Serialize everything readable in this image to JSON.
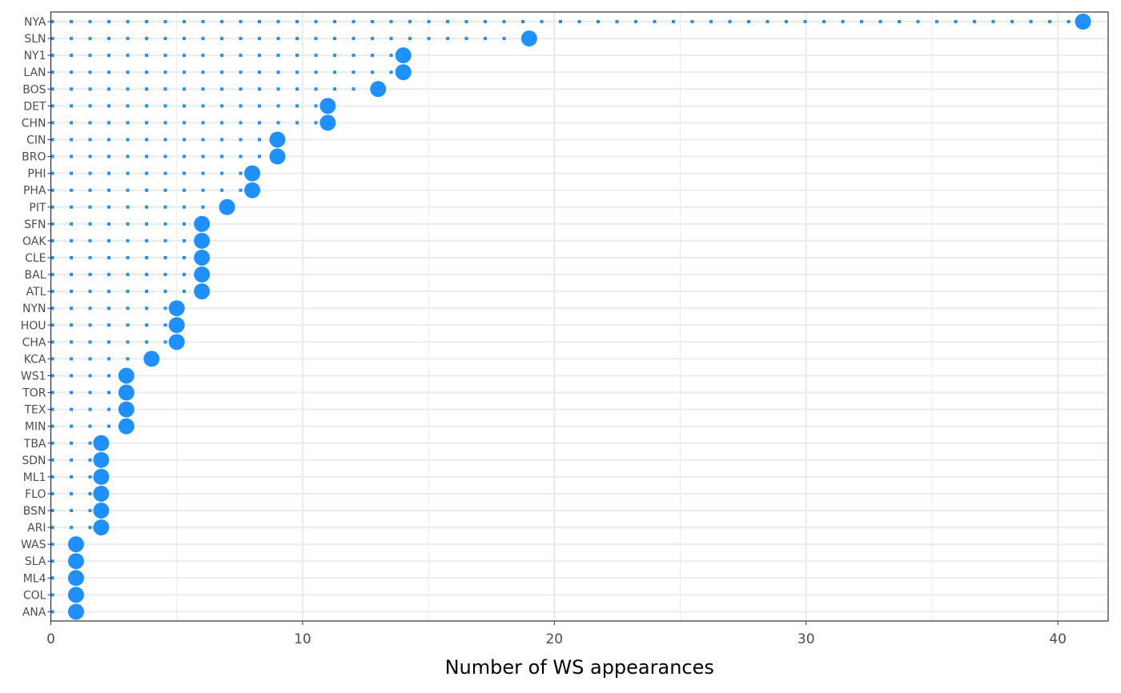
{
  "chart_data": {
    "type": "lollipop",
    "xlabel": "Number of WS appearances",
    "ylabel": "",
    "xlim": [
      0,
      42
    ],
    "x_ticks": [
      0,
      10,
      20,
      30,
      40
    ],
    "grid": true,
    "colors": {
      "point": "#1e90ff",
      "stem": "#1e90ff",
      "grid": "#ebebeb",
      "axis": "#333333",
      "text": "#4d4d4d"
    },
    "categories": [
      "NYA",
      "SLN",
      "NY1",
      "LAN",
      "BOS",
      "DET",
      "CHN",
      "CIN",
      "BRO",
      "PHI",
      "PHA",
      "PIT",
      "SFN",
      "OAK",
      "CLE",
      "BAL",
      "ATL",
      "NYN",
      "HOU",
      "CHA",
      "KCA",
      "WS1",
      "TOR",
      "TEX",
      "MIN",
      "TBA",
      "SDN",
      "ML1",
      "FLO",
      "BSN",
      "ARI",
      "WAS",
      "SLA",
      "ML4",
      "COL",
      "ANA"
    ],
    "values": [
      41,
      19,
      14,
      14,
      13,
      11,
      11,
      9,
      9,
      8,
      8,
      7,
      6,
      6,
      6,
      6,
      6,
      5,
      5,
      5,
      4,
      3,
      3,
      3,
      3,
      2,
      2,
      2,
      2,
      2,
      2,
      1,
      1,
      1,
      1,
      1
    ]
  }
}
